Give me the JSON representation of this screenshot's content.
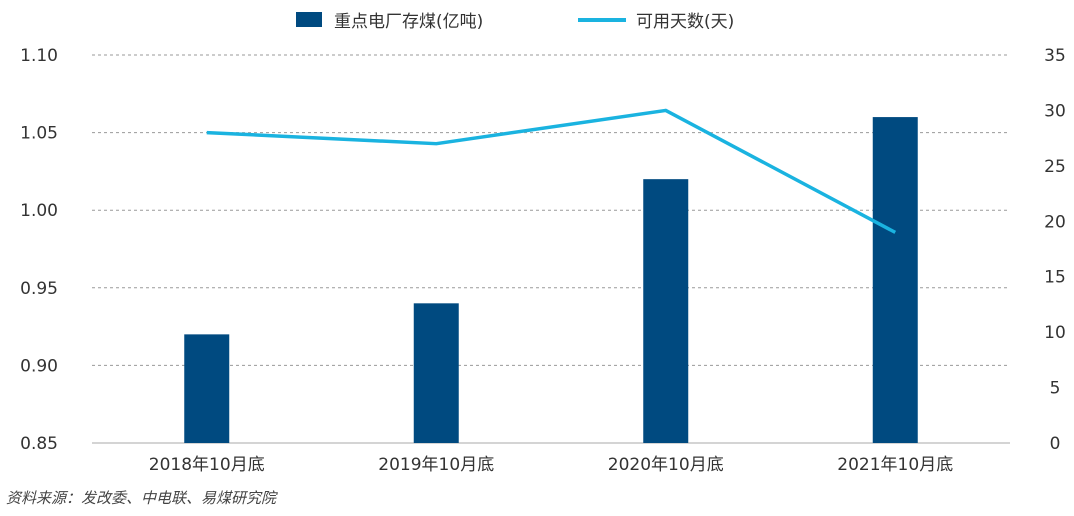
{
  "chart_data": {
    "type": "bar",
    "categories": [
      "2018年10月底",
      "2019年10月底",
      "2020年10月底",
      "2021年10月底"
    ],
    "series": [
      {
        "name": "重点电厂存煤(亿吨)",
        "type": "bar",
        "axis": "left",
        "values": [
          0.92,
          0.94,
          1.02,
          1.06
        ]
      },
      {
        "name": "可用天数(天)",
        "type": "line",
        "axis": "right",
        "values": [
          28,
          27,
          30,
          19
        ]
      }
    ],
    "y_left": {
      "min": 0.85,
      "max": 1.1,
      "ticks": [
        "0.85",
        "0.90",
        "0.95",
        "1.00",
        "1.05",
        "1.10"
      ]
    },
    "y_right": {
      "min": 0,
      "max": 35,
      "ticks": [
        "0",
        "5",
        "10",
        "15",
        "20",
        "25",
        "30",
        "35"
      ]
    },
    "grid": true,
    "legend_position": "top-center",
    "colors": {
      "bar": "#004a80",
      "line": "#1ab3e0",
      "grid": "#9a9a9a",
      "axis": "#aaaaaa",
      "text": "#333333"
    }
  },
  "source_note": "资料来源：发改委、中电联、易煤研究院"
}
